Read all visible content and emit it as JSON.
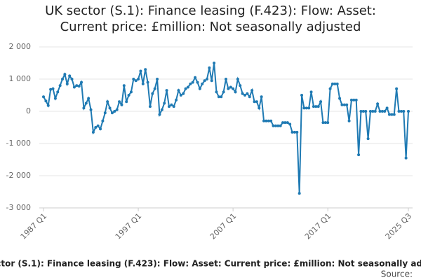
{
  "chart_data": {
    "type": "line",
    "title": "UK sector (S.1): Finance leasing (F.423): Flow: Asset: Current price: £million: Not seasonally adjusted",
    "source": "Source:",
    "categories": [
      "1987 Q1",
      null,
      null,
      null,
      null,
      null,
      null,
      null,
      null,
      null,
      null,
      null,
      null,
      null,
      null,
      null,
      null,
      null,
      null,
      null,
      null,
      null,
      null,
      null,
      null,
      null,
      null,
      null,
      null,
      null,
      null,
      null,
      null,
      null,
      null,
      null,
      null,
      null,
      null,
      null,
      "1997 Q1",
      null,
      null,
      null,
      null,
      null,
      null,
      null,
      null,
      null,
      null,
      null,
      null,
      null,
      null,
      null,
      null,
      null,
      null,
      null,
      null,
      null,
      null,
      null,
      null,
      null,
      null,
      null,
      null,
      null,
      null,
      null,
      null,
      null,
      null,
      null,
      null,
      null,
      null,
      null,
      "2007 Q1",
      null,
      null,
      null,
      null,
      null,
      null,
      null,
      null,
      null,
      null,
      null,
      null,
      null,
      null,
      null,
      null,
      null,
      null,
      null,
      null,
      null,
      null,
      null,
      null,
      null,
      null,
      null,
      null,
      null,
      null,
      null,
      null,
      null,
      null,
      null,
      null,
      null,
      null,
      null,
      "2017 Q1",
      null,
      null,
      null,
      null,
      null,
      null,
      null,
      null,
      null,
      null,
      null,
      null,
      null,
      null,
      null,
      null,
      null,
      null,
      null,
      null,
      null,
      null,
      null,
      null,
      null,
      null,
      null,
      null,
      null,
      null,
      null,
      null,
      null,
      "2025 Q3"
    ],
    "series": [
      {
        "name": "UK sector (S.1): Finance leasing (F.423): Flow: Asset: Current price: £million: Not seasonally adjusted",
        "color": "#1f7ab3",
        "values": [
          450,
          320,
          180,
          680,
          700,
          400,
          600,
          800,
          1000,
          1150,
          850,
          1100,
          1000,
          750,
          800,
          780,
          900,
          100,
          250,
          400,
          50,
          -650,
          -500,
          -450,
          -550,
          -300,
          -50,
          300,
          100,
          -50,
          0,
          50,
          300,
          200,
          800,
          300,
          500,
          600,
          1000,
          950,
          1000,
          1250,
          850,
          1300,
          900,
          150,
          550,
          700,
          1000,
          -100,
          50,
          250,
          650,
          150,
          200,
          150,
          350,
          650,
          500,
          550,
          700,
          750,
          850,
          900,
          1050,
          900,
          700,
          850,
          950,
          1000,
          1350,
          950,
          1500,
          600,
          450,
          450,
          600,
          1000,
          700,
          750,
          700,
          600,
          1000,
          800,
          550,
          500,
          550,
          450,
          650,
          300,
          300,
          100,
          450,
          -300,
          -300,
          -300,
          -300,
          -450,
          -450,
          -450,
          -450,
          -350,
          -350,
          -350,
          -400,
          -650,
          -650,
          -650,
          -2550,
          500,
          100,
          100,
          100,
          600,
          150,
          150,
          150,
          300,
          -350,
          -350,
          -350,
          700,
          850,
          850,
          850,
          400,
          200,
          200,
          200,
          -300,
          350,
          350,
          350,
          -1350,
          0,
          0,
          0,
          -850,
          0,
          0,
          0,
          230,
          0,
          0,
          0,
          100,
          -100,
          -100,
          -100,
          700,
          0,
          0,
          0,
          -1450,
          0
        ]
      }
    ],
    "ylim": [
      -3000,
      2000
    ],
    "yticks": [
      {
        "value": -3000,
        "label": "-3 000"
      },
      {
        "value": -2000,
        "label": "-2 000"
      },
      {
        "value": -1000,
        "label": "-1 000"
      },
      0,
      {
        "value": 1000,
        "label": "1 000"
      },
      {
        "value": 2000,
        "label": "2 000"
      }
    ],
    "grid": true
  }
}
